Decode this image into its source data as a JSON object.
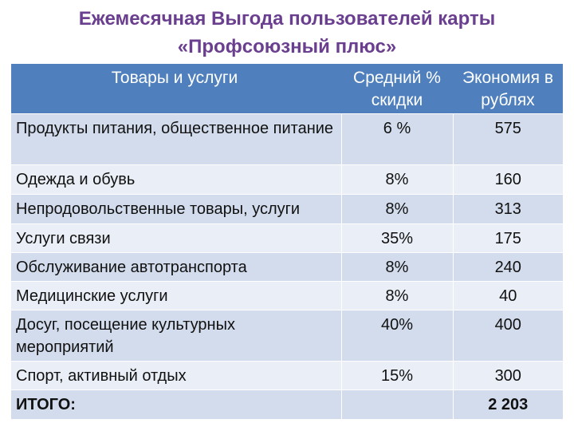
{
  "title": {
    "line1": "Ежемесячная Выгода пользователей карты",
    "line2": "«Профсоюзный плюс»"
  },
  "table": {
    "headers": [
      "Товары и услуги",
      "Средний % скидки",
      "Экономия в рублях"
    ],
    "rows": [
      {
        "item": "Продукты питания, общественное питание",
        "discount": "6 %",
        "savings": "575"
      },
      {
        "item": "Одежда и обувь",
        "discount": "8%",
        "savings": "160"
      },
      {
        "item": "Непродовольственные товары, услуги",
        "discount": "8%",
        "savings": "313"
      },
      {
        "item": "Услуги связи",
        "discount": "35%",
        "savings": "175"
      },
      {
        "item": "Обслуживание автотранспорта",
        "discount": "8%",
        "savings": "240"
      },
      {
        "item": "Медицинские услуги",
        "discount": "8%",
        "savings": "40"
      },
      {
        "item": "Досуг, посещение культурных мероприятий",
        "discount": "40%",
        "savings": "400"
      },
      {
        "item": "Спорт, активный отдых",
        "discount": "15%",
        "savings": "300"
      }
    ],
    "total": {
      "label": "ИТОГО:",
      "discount": "",
      "savings": "2 203"
    }
  },
  "colors": {
    "title": "#6b3f8f",
    "header_bg": "#4f80bd",
    "row_odd": "#d2dcec",
    "row_even": "#eaeff7"
  }
}
